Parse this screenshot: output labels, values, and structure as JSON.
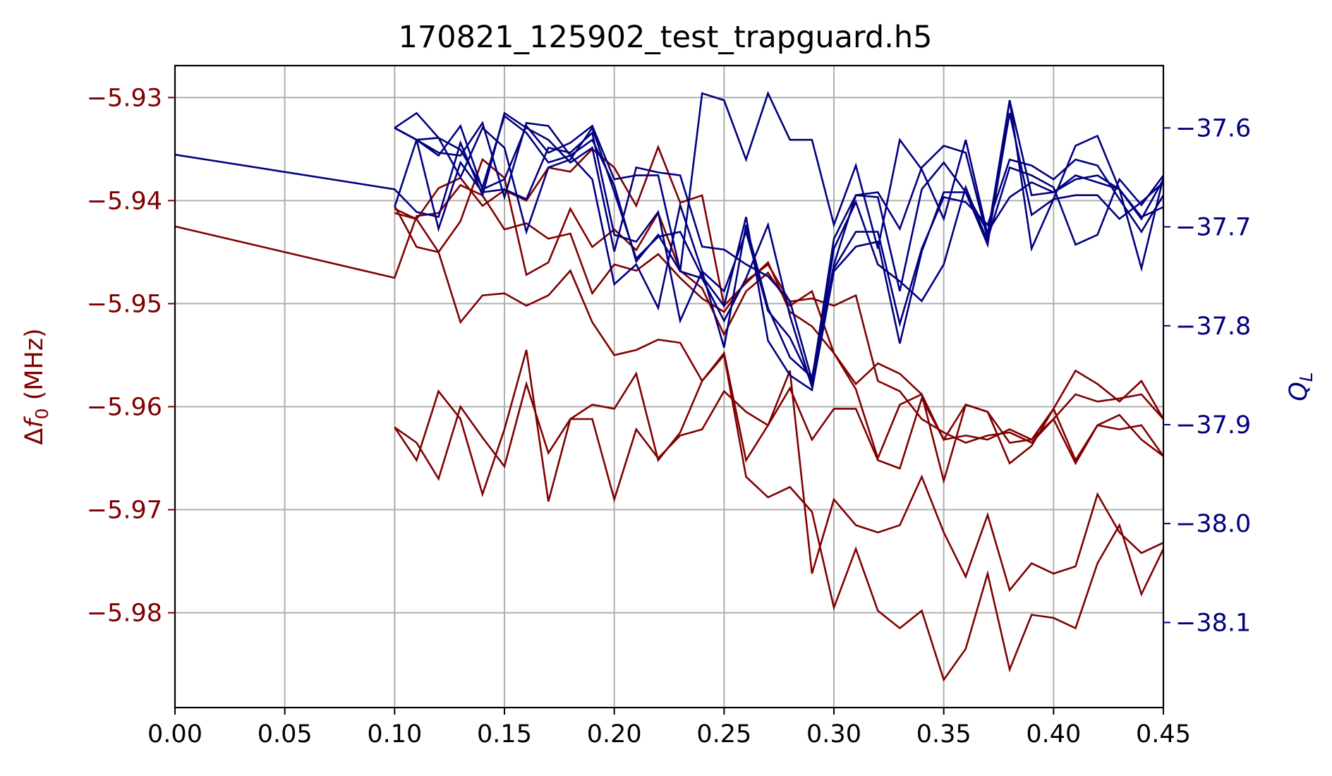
{
  "chart_data": {
    "type": "line",
    "title": "170821_125902_test_trapguard.h5",
    "colors": {
      "left": "#800000",
      "right": "#000080",
      "grid": "#b0b0b0"
    },
    "x_axis": {
      "label": "",
      "lim": [
        0.0,
        0.45
      ],
      "ticks": [
        0.0,
        0.05,
        0.1,
        0.15,
        0.2,
        0.25,
        0.3,
        0.35,
        0.4,
        0.45
      ],
      "tick_labels": [
        "0.00",
        "0.05",
        "0.10",
        "0.15",
        "0.20",
        "0.25",
        "0.30",
        "0.35",
        "0.40",
        "0.45"
      ]
    },
    "left_axis": {
      "label": "Δf₀ (MHz)",
      "label_parts": {
        "delta": "Δ",
        "f": "f",
        "sub": "0",
        "unit": " (MHz)"
      },
      "lim": [
        -5.9892,
        -5.9269
      ],
      "ticks": [
        -5.93,
        -5.94,
        -5.95,
        -5.96,
        -5.97,
        -5.98
      ],
      "tick_labels": [
        "−5.93",
        "−5.94",
        "−5.95",
        "−5.96",
        "−5.97",
        "−5.98"
      ]
    },
    "right_axis": {
      "label": "Q_L",
      "label_parts": {
        "q": "Q",
        "sub": "L"
      },
      "lim": [
        -38.186,
        -37.537
      ],
      "ticks": [
        -37.6,
        -37.7,
        -37.8,
        -37.9,
        -38.0,
        -38.1
      ],
      "tick_labels": [
        "−37.6",
        "−37.7",
        "−37.8",
        "−37.9",
        "−38.0",
        "−38.1"
      ]
    },
    "grid": true,
    "left_series": [
      {
        "x": [
          0.0,
          0.1,
          0.11,
          0.12,
          0.13,
          0.14,
          0.15,
          0.16,
          0.17,
          0.18,
          0.19,
          0.2,
          0.21,
          0.22,
          0.23,
          0.24,
          0.25,
          0.26,
          0.27,
          0.28,
          0.29,
          0.3,
          0.31,
          0.32,
          0.33,
          0.34,
          0.35,
          0.36,
          0.37,
          0.38,
          0.39,
          0.4,
          0.41,
          0.42,
          0.43,
          0.44,
          0.45
        ],
        "y": [
          -5.9425,
          -5.9475,
          -5.9415,
          -5.9412,
          -5.9385,
          -5.9395,
          -5.9428,
          -5.9422,
          -5.9437,
          -5.9432,
          -5.949,
          -5.9462,
          -5.9468,
          -5.9452,
          -5.9475,
          -5.9495,
          -5.9508,
          -5.9478,
          -5.9462,
          -5.9498,
          -5.9495,
          -5.9502,
          -5.9492,
          -5.9575,
          -5.9585,
          -5.9612,
          -5.9625,
          -5.9635,
          -5.9628,
          -5.9625,
          -5.9635,
          -5.9612,
          -5.9588,
          -5.9595,
          -5.9592,
          -5.9588,
          -5.9612
        ]
      },
      {
        "x": [
          0.1,
          0.11,
          0.12,
          0.13,
          0.14,
          0.15,
          0.16,
          0.17,
          0.18,
          0.19,
          0.2,
          0.21,
          0.22,
          0.23,
          0.24,
          0.25,
          0.26,
          0.27,
          0.28,
          0.29,
          0.3,
          0.31,
          0.32,
          0.33,
          0.34,
          0.35,
          0.36,
          0.37,
          0.38,
          0.39,
          0.4,
          0.41,
          0.42,
          0.43,
          0.44,
          0.45
        ],
        "y": [
          -5.9405,
          -5.9445,
          -5.945,
          -5.942,
          -5.936,
          -5.9378,
          -5.9472,
          -5.946,
          -5.9408,
          -5.9445,
          -5.9428,
          -5.9448,
          -5.9412,
          -5.9468,
          -5.9485,
          -5.953,
          -5.9488,
          -5.947,
          -5.9502,
          -5.9488,
          -5.9548,
          -5.9578,
          -5.9558,
          -5.9568,
          -5.9588,
          -5.9632,
          -5.9628,
          -5.9632,
          -5.9622,
          -5.9632,
          -5.9602,
          -5.9565,
          -5.9578,
          -5.9595,
          -5.9575,
          -5.9612
        ]
      },
      {
        "x": [
          0.1,
          0.11,
          0.12,
          0.13,
          0.14,
          0.15,
          0.16,
          0.17,
          0.18,
          0.19,
          0.2,
          0.21,
          0.22,
          0.23,
          0.24,
          0.25,
          0.26,
          0.27,
          0.28,
          0.29,
          0.3,
          0.31,
          0.32,
          0.33,
          0.34,
          0.35,
          0.36,
          0.37,
          0.38,
          0.39,
          0.4,
          0.41,
          0.42,
          0.43,
          0.44,
          0.45
        ],
        "y": [
          -5.9408,
          -5.9418,
          -5.9388,
          -5.9378,
          -5.9405,
          -5.939,
          -5.94,
          -5.9368,
          -5.9372,
          -5.935,
          -5.9368,
          -5.9405,
          -5.9348,
          -5.9402,
          -5.9395,
          -5.9502,
          -5.948,
          -5.946,
          -5.9508,
          -5.9522,
          -5.9548,
          -5.9583,
          -5.965,
          -5.9598,
          -5.9588,
          -5.9672,
          -5.9598,
          -5.9605,
          -5.9655,
          -5.9638,
          -5.9602,
          -5.9652,
          -5.9618,
          -5.9608,
          -5.9632,
          -5.9648
        ]
      },
      {
        "x": [
          0.1,
          0.11,
          0.12,
          0.13,
          0.14,
          0.15,
          0.16,
          0.17,
          0.18,
          0.19,
          0.2,
          0.21,
          0.22,
          0.23,
          0.24,
          0.25,
          0.26,
          0.27,
          0.28,
          0.29,
          0.3,
          0.31,
          0.32,
          0.33,
          0.34,
          0.35,
          0.36,
          0.37,
          0.38,
          0.39,
          0.4,
          0.41,
          0.42,
          0.43,
          0.44,
          0.45
        ],
        "y": [
          -5.962,
          -5.9635,
          -5.967,
          -5.96,
          -5.963,
          -5.9658,
          -5.9578,
          -5.9645,
          -5.9612,
          -5.9612,
          -5.969,
          -5.9622,
          -5.965,
          -5.9628,
          -5.9622,
          -5.9585,
          -5.9605,
          -5.9618,
          -5.9582,
          -5.9632,
          -5.9602,
          -5.9602,
          -5.9652,
          -5.966,
          -5.9592,
          -5.9632,
          -5.9598,
          -5.9605,
          -5.9635,
          -5.9632,
          -5.9612,
          -5.9655,
          -5.9618,
          -5.9622,
          -5.9618,
          -5.9648
        ]
      },
      {
        "x": [
          0.1,
          0.11,
          0.12,
          0.13,
          0.14,
          0.15,
          0.16,
          0.17,
          0.18,
          0.19,
          0.2,
          0.21,
          0.22,
          0.23,
          0.24,
          0.25,
          0.26,
          0.27,
          0.28,
          0.29,
          0.3,
          0.31,
          0.32,
          0.33,
          0.34,
          0.35,
          0.36,
          0.37,
          0.38,
          0.39,
          0.4,
          0.41,
          0.42,
          0.43,
          0.44,
          0.45
        ],
        "y": [
          -5.962,
          -5.9652,
          -5.9585,
          -5.9612,
          -5.9685,
          -5.9622,
          -5.9545,
          -5.9692,
          -5.9612,
          -5.9598,
          -5.9602,
          -5.9568,
          -5.9652,
          -5.9625,
          -5.9575,
          -5.9548,
          -5.9652,
          -5.9618,
          -5.9565,
          -5.9762,
          -5.969,
          -5.9715,
          -5.9722,
          -5.9715,
          -5.9668,
          -5.9722,
          -5.9765,
          -5.9705,
          -5.9778,
          -5.9752,
          -5.9762,
          -5.9755,
          -5.9685,
          -5.9722,
          -5.9742,
          -5.9732
        ]
      },
      {
        "x": [
          0.1,
          0.11,
          0.12,
          0.13,
          0.14,
          0.15,
          0.16,
          0.17,
          0.18,
          0.19,
          0.2,
          0.21,
          0.22,
          0.23,
          0.24,
          0.25,
          0.26,
          0.27,
          0.28,
          0.29,
          0.3,
          0.31,
          0.32,
          0.33,
          0.34,
          0.35,
          0.36,
          0.37,
          0.38,
          0.39,
          0.4,
          0.41,
          0.42,
          0.43,
          0.44,
          0.45
        ],
        "y": [
          -5.9412,
          -5.9418,
          -5.945,
          -5.9518,
          -5.9492,
          -5.949,
          -5.9502,
          -5.9492,
          -5.9468,
          -5.9518,
          -5.955,
          -5.9545,
          -5.9535,
          -5.9538,
          -5.9575,
          -5.955,
          -5.9668,
          -5.9688,
          -5.9678,
          -5.9702,
          -5.9795,
          -5.9738,
          -5.9798,
          -5.9815,
          -5.9798,
          -5.9865,
          -5.9835,
          -5.9762,
          -5.9855,
          -5.9802,
          -5.9805,
          -5.9815,
          -5.9752,
          -5.9715,
          -5.9782,
          -5.9738
        ]
      }
    ],
    "right_series": [
      {
        "x": [
          0.0,
          0.1,
          0.11,
          0.12,
          0.13,
          0.14,
          0.15,
          0.16,
          0.17,
          0.18,
          0.19,
          0.2,
          0.21,
          0.22,
          0.23,
          0.24,
          0.25,
          0.26,
          0.27,
          0.28,
          0.29,
          0.3,
          0.31,
          0.32,
          0.33,
          0.34,
          0.35,
          0.36,
          0.37,
          0.38,
          0.39,
          0.4,
          0.41,
          0.42,
          0.43,
          0.44,
          0.45
        ],
        "y": [
          -37.627,
          -37.662,
          -37.685,
          -37.69,
          -37.615,
          -37.668,
          -37.585,
          -37.6,
          -37.612,
          -37.635,
          -37.62,
          -37.725,
          -37.64,
          -37.645,
          -37.648,
          -37.72,
          -37.723,
          -37.738,
          -37.75,
          -37.775,
          -37.855,
          -37.712,
          -37.668,
          -37.665,
          -37.702,
          -37.64,
          -37.618,
          -37.625,
          -37.712,
          -37.64,
          -37.648,
          -37.66,
          -37.718,
          -37.708,
          -37.652,
          -37.678,
          -37.648
        ]
      },
      {
        "x": [
          0.1,
          0.11,
          0.12,
          0.13,
          0.14,
          0.15,
          0.16,
          0.17,
          0.18,
          0.19,
          0.2,
          0.21,
          0.22,
          0.23,
          0.24,
          0.25,
          0.26,
          0.27,
          0.28,
          0.29,
          0.3,
          0.31,
          0.32,
          0.33,
          0.34,
          0.35,
          0.36,
          0.37,
          0.38,
          0.39,
          0.4,
          0.41,
          0.42,
          0.43,
          0.44,
          0.45
        ],
        "y": [
          -37.6,
          -37.585,
          -37.61,
          -37.622,
          -37.66,
          -37.588,
          -37.605,
          -37.635,
          -37.628,
          -37.652,
          -37.758,
          -37.738,
          -37.782,
          -37.678,
          -37.745,
          -37.765,
          -37.705,
          -37.785,
          -37.812,
          -37.858,
          -37.738,
          -37.668,
          -37.67,
          -37.765,
          -37.662,
          -37.635,
          -37.665,
          -37.718,
          -37.572,
          -37.668,
          -37.665,
          -37.648,
          -37.655,
          -37.662,
          -37.692,
          -37.652
        ]
      },
      {
        "x": [
          0.1,
          0.11,
          0.12,
          0.13,
          0.14,
          0.15,
          0.16,
          0.17,
          0.18,
          0.19,
          0.2,
          0.21,
          0.22,
          0.23,
          0.24,
          0.25,
          0.26,
          0.27,
          0.28,
          0.29,
          0.3,
          0.31,
          0.32,
          0.33,
          0.34,
          0.35,
          0.36,
          0.37,
          0.38,
          0.39,
          0.4,
          0.41,
          0.42,
          0.43,
          0.44,
          0.45
        ],
        "y": [
          -37.6,
          -37.612,
          -37.61,
          -37.65,
          -37.6,
          -37.62,
          -37.705,
          -37.64,
          -37.632,
          -37.6,
          -37.665,
          -37.732,
          -37.71,
          -37.705,
          -37.75,
          -37.78,
          -37.69,
          -37.815,
          -37.85,
          -37.865,
          -37.745,
          -37.72,
          -37.715,
          -37.818,
          -37.725,
          -37.665,
          -37.665,
          -37.705,
          -37.67,
          -37.655,
          -37.665,
          -37.652,
          -37.648,
          -37.662,
          -37.69,
          -37.68
        ]
      },
      {
        "x": [
          0.1,
          0.11,
          0.12,
          0.13,
          0.14,
          0.15,
          0.16,
          0.17,
          0.18,
          0.19,
          0.2,
          0.21,
          0.22,
          0.23,
          0.24,
          0.25,
          0.26,
          0.27,
          0.28,
          0.29,
          0.3,
          0.31,
          0.32,
          0.33,
          0.34,
          0.35,
          0.36,
          0.37,
          0.38,
          0.39,
          0.4,
          0.41,
          0.42,
          0.43,
          0.44,
          0.45
        ],
        "y": [
          -37.6,
          -37.612,
          -37.702,
          -37.635,
          -37.665,
          -37.662,
          -37.672,
          -37.62,
          -37.625,
          -37.605,
          -37.708,
          -37.715,
          -37.685,
          -37.795,
          -37.745,
          -37.822,
          -37.698,
          -37.782,
          -37.832,
          -37.852,
          -37.742,
          -37.705,
          -37.705,
          -37.798,
          -37.722,
          -37.67,
          -37.675,
          -37.698,
          -37.632,
          -37.638,
          -37.652,
          -37.632,
          -37.638,
          -37.672,
          -37.705,
          -37.668
        ]
      },
      {
        "x": [
          0.1,
          0.11,
          0.12,
          0.13,
          0.14,
          0.15,
          0.16,
          0.17,
          0.18,
          0.19,
          0.2,
          0.21,
          0.22,
          0.23,
          0.24,
          0.25,
          0.26,
          0.27,
          0.28,
          0.29,
          0.3,
          0.31,
          0.32,
          0.33,
          0.34,
          0.35,
          0.36,
          0.37,
          0.38,
          0.39,
          0.4,
          0.41,
          0.42,
          0.43,
          0.44,
          0.45
        ],
        "y": [
          -37.68,
          -37.612,
          -37.625,
          -37.628,
          -37.595,
          -37.67,
          -37.595,
          -37.598,
          -37.628,
          -37.612,
          -37.658,
          -37.735,
          -37.708,
          -37.745,
          -37.752,
          -37.795,
          -37.752,
          -37.698,
          -37.79,
          -37.862,
          -37.722,
          -37.675,
          -37.738,
          -37.755,
          -37.775,
          -37.738,
          -37.66,
          -37.715,
          -37.585,
          -37.688,
          -37.672,
          -37.618,
          -37.608,
          -37.662,
          -37.742,
          -37.65
        ]
      },
      {
        "x": [
          0.1,
          0.11,
          0.12,
          0.13,
          0.14,
          0.15,
          0.16,
          0.17,
          0.18,
          0.19,
          0.2,
          0.21,
          0.22,
          0.23,
          0.24,
          0.25,
          0.26,
          0.27,
          0.28,
          0.29,
          0.3,
          0.31,
          0.32,
          0.33,
          0.34,
          0.35,
          0.36,
          0.37,
          0.38,
          0.39,
          0.4,
          0.41,
          0.42,
          0.43,
          0.44,
          0.45
        ],
        "y": [
          -37.6,
          -37.612,
          -37.628,
          -37.598,
          -37.662,
          -37.652,
          -37.598,
          -37.625,
          -37.615,
          -37.598,
          -37.652,
          -37.648,
          -37.648,
          -37.745,
          -37.565,
          -37.572,
          -37.632,
          -37.565,
          -37.612,
          -37.612,
          -37.698,
          -37.638,
          -37.722,
          -37.612,
          -37.642,
          -37.692,
          -37.612,
          -37.708,
          -37.572,
          -37.722,
          -37.672,
          -37.668,
          -37.668,
          -37.692,
          -37.675,
          -37.655
        ]
      }
    ]
  }
}
